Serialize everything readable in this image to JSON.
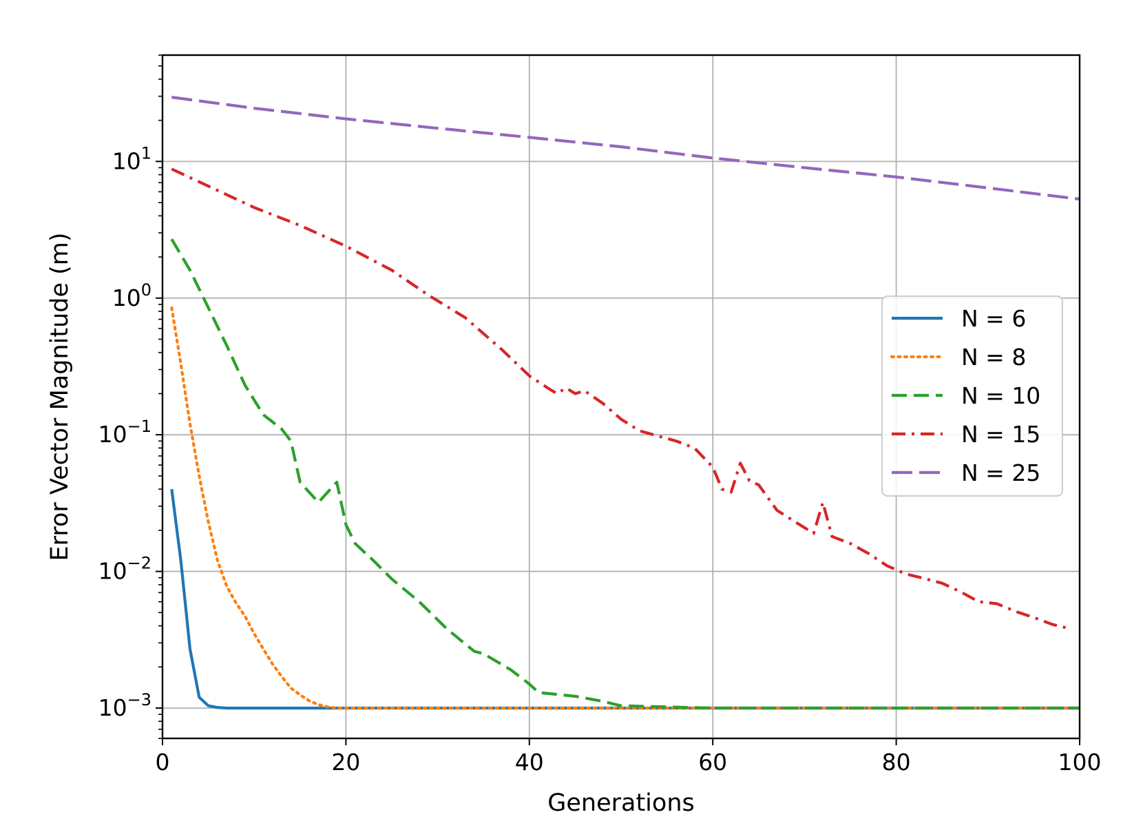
{
  "chart_data": {
    "type": "line",
    "title": "",
    "xlabel": "Generations",
    "ylabel": "Error Vector Magnitude (m)",
    "xlim": [
      0,
      100
    ],
    "ylim": [
      0.0006,
      60
    ],
    "yscale": "log",
    "grid": true,
    "legend_position": "center-right",
    "x_ticks": [
      {
        "value": 0,
        "label": "0"
      },
      {
        "value": 20,
        "label": "20"
      },
      {
        "value": 40,
        "label": "40"
      },
      {
        "value": 60,
        "label": "60"
      },
      {
        "value": 80,
        "label": "80"
      },
      {
        "value": 100,
        "label": "100"
      }
    ],
    "y_ticks": [
      {
        "value": 0.001,
        "base": "10",
        "exp": "−3"
      },
      {
        "value": 0.01,
        "base": "10",
        "exp": "−2"
      },
      {
        "value": 0.1,
        "base": "10",
        "exp": "−1"
      },
      {
        "value": 1,
        "base": "10",
        "exp": "0"
      },
      {
        "value": 10,
        "base": "10",
        "exp": "1"
      }
    ],
    "series": [
      {
        "name": "N = 6",
        "color": "#1f77b4",
        "dash": "solid",
        "points": [
          [
            1,
            0.04
          ],
          [
            2,
            0.012
          ],
          [
            3,
            0.0027
          ],
          [
            4,
            0.0012
          ],
          [
            5,
            0.00104
          ],
          [
            6,
            0.00101
          ],
          [
            7,
            0.001
          ],
          [
            10,
            0.001
          ],
          [
            100,
            0.001
          ]
        ]
      },
      {
        "name": "N = 8",
        "color": "#ff7f0e",
        "dash": "dotted",
        "points": [
          [
            1,
            0.85
          ],
          [
            2,
            0.33
          ],
          [
            3,
            0.12
          ],
          [
            4,
            0.05
          ],
          [
            5,
            0.023
          ],
          [
            6,
            0.012
          ],
          [
            7,
            0.0078
          ],
          [
            8,
            0.0059
          ],
          [
            9,
            0.0047
          ],
          [
            10,
            0.0035
          ],
          [
            11,
            0.0027
          ],
          [
            12,
            0.0021
          ],
          [
            13,
            0.0017
          ],
          [
            14,
            0.0014
          ],
          [
            15,
            0.00125
          ],
          [
            16,
            0.00113
          ],
          [
            17,
            0.00106
          ],
          [
            18,
            0.00102
          ],
          [
            19,
            0.001
          ],
          [
            20,
            0.001
          ],
          [
            100,
            0.001
          ]
        ]
      },
      {
        "name": "N = 10",
        "color": "#2ca02c",
        "dash": "dashed",
        "points": [
          [
            1,
            2.7
          ],
          [
            3,
            1.6
          ],
          [
            5,
            0.85
          ],
          [
            7,
            0.45
          ],
          [
            9,
            0.23
          ],
          [
            11,
            0.14
          ],
          [
            13,
            0.11
          ],
          [
            14,
            0.09
          ],
          [
            15,
            0.045
          ],
          [
            17,
            0.032
          ],
          [
            19,
            0.045
          ],
          [
            20,
            0.022
          ],
          [
            21,
            0.016
          ],
          [
            23,
            0.012
          ],
          [
            25,
            0.0088
          ],
          [
            28,
            0.006
          ],
          [
            31,
            0.0038
          ],
          [
            34,
            0.0026
          ],
          [
            35,
            0.0025
          ],
          [
            38,
            0.0019
          ],
          [
            40,
            0.0015
          ],
          [
            41,
            0.0013
          ],
          [
            45,
            0.00122
          ],
          [
            48,
            0.00112
          ],
          [
            50,
            0.00104
          ],
          [
            55,
            0.00102
          ],
          [
            60,
            0.001
          ],
          [
            100,
            0.001
          ]
        ]
      },
      {
        "name": "N = 15",
        "color": "#d62728",
        "dash": "dashdot",
        "points": [
          [
            1,
            8.8
          ],
          [
            5,
            6.6
          ],
          [
            10,
            4.6
          ],
          [
            15,
            3.4
          ],
          [
            20,
            2.4
          ],
          [
            25,
            1.6
          ],
          [
            29,
            1.05
          ],
          [
            33,
            0.72
          ],
          [
            37,
            0.42
          ],
          [
            40,
            0.27
          ],
          [
            42,
            0.22
          ],
          [
            43,
            0.2
          ],
          [
            44,
            0.22
          ],
          [
            45,
            0.2
          ],
          [
            46,
            0.21
          ],
          [
            48,
            0.17
          ],
          [
            50,
            0.13
          ],
          [
            52,
            0.107
          ],
          [
            54,
            0.098
          ],
          [
            56,
            0.09
          ],
          [
            58,
            0.08
          ],
          [
            60,
            0.058
          ],
          [
            61,
            0.04
          ],
          [
            62,
            0.038
          ],
          [
            63,
            0.062
          ],
          [
            64,
            0.046
          ],
          [
            65,
            0.043
          ],
          [
            67,
            0.028
          ],
          [
            69,
            0.023
          ],
          [
            71,
            0.019
          ],
          [
            72,
            0.032
          ],
          [
            73,
            0.018
          ],
          [
            75,
            0.016
          ],
          [
            77,
            0.0135
          ],
          [
            79,
            0.011
          ],
          [
            81,
            0.0096
          ],
          [
            83,
            0.0089
          ],
          [
            85,
            0.0082
          ],
          [
            87,
            0.0071
          ],
          [
            89,
            0.006
          ],
          [
            91,
            0.0058
          ],
          [
            93,
            0.0051
          ],
          [
            95,
            0.0046
          ],
          [
            97,
            0.0041
          ],
          [
            99,
            0.0038
          ]
        ]
      },
      {
        "name": "N = 25",
        "color": "#9467bd",
        "dash": "longdash",
        "points": [
          [
            1,
            29.5
          ],
          [
            10,
            24.5
          ],
          [
            20,
            20.5
          ],
          [
            30,
            17.5
          ],
          [
            40,
            15.0
          ],
          [
            50,
            12.8
          ],
          [
            60,
            10.6
          ],
          [
            70,
            9.0
          ],
          [
            80,
            7.7
          ],
          [
            90,
            6.4
          ],
          [
            100,
            5.3
          ]
        ]
      }
    ]
  }
}
